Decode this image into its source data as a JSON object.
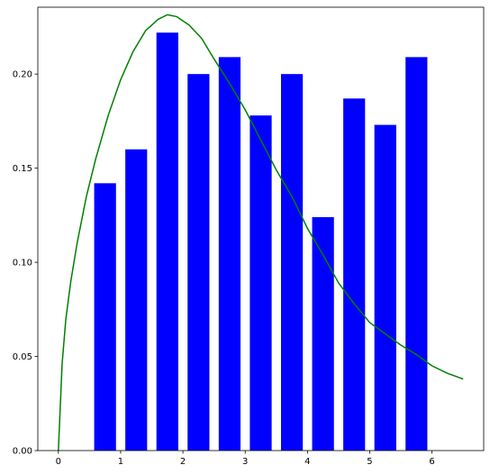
{
  "chart_data": {
    "type": "bar",
    "title": "",
    "xlabel": "",
    "ylabel": "",
    "xlim": [
      -0.33,
      6.83
    ],
    "ylim": [
      0,
      0.2355
    ],
    "grid": false,
    "legend": "none",
    "x_ticks": [
      {
        "value": 0,
        "label": "0"
      },
      {
        "value": 1,
        "label": "1"
      },
      {
        "value": 2,
        "label": "2"
      },
      {
        "value": 3,
        "label": "3"
      },
      {
        "value": 4,
        "label": "4"
      },
      {
        "value": 5,
        "label": "5"
      },
      {
        "value": 6,
        "label": "6"
      }
    ],
    "y_ticks": [
      {
        "value": 0.0,
        "label": "0.00"
      },
      {
        "value": 0.05,
        "label": "0.05"
      },
      {
        "value": 0.1,
        "label": "0.10"
      },
      {
        "value": 0.15,
        "label": "0.15"
      },
      {
        "value": 0.2,
        "label": "0.20"
      }
    ],
    "bars": {
      "color": "#0000ff",
      "width": 0.35,
      "x": [
        0.75,
        1.25,
        1.75,
        2.25,
        2.75,
        3.25,
        3.75,
        4.25,
        4.75,
        5.25,
        5.75
      ],
      "values": [
        0.142,
        0.16,
        0.222,
        0.2,
        0.209,
        0.178,
        0.2,
        0.124,
        0.187,
        0.173,
        0.209
      ]
    },
    "curve": {
      "type": "line",
      "color": "#008000",
      "x": [
        0,
        0.06,
        0.12,
        0.2,
        0.3,
        0.45,
        0.6,
        0.8,
        1.0,
        1.2,
        1.4,
        1.6,
        1.75,
        1.9,
        2.1,
        2.3,
        2.5,
        2.75,
        3.0,
        3.25,
        3.5,
        3.75,
        4.0,
        4.25,
        4.5,
        4.75,
        5.0,
        5.25,
        5.5,
        5.75,
        6.0,
        6.25,
        6.5
      ],
      "y": [
        0,
        0.046,
        0.07,
        0.09,
        0.11,
        0.135,
        0.155,
        0.178,
        0.197,
        0.212,
        0.223,
        0.229,
        0.2315,
        0.2305,
        0.226,
        0.219,
        0.208,
        0.195,
        0.181,
        0.165,
        0.149,
        0.135,
        0.118,
        0.104,
        0.089,
        0.078,
        0.068,
        0.062,
        0.056,
        0.051,
        0.045,
        0.041,
        0.038
      ]
    }
  }
}
